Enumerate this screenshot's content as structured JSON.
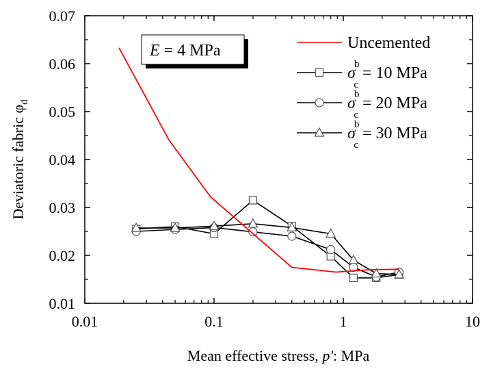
{
  "chart_data": {
    "type": "line",
    "title": "",
    "xlabel": "Mean effective stress, p': MPa",
    "xlabel_parts": {
      "prefix": "Mean effective stress, ",
      "var": "p'",
      "suffix": ": MPa"
    },
    "ylabel": "Deviatoric fabric φd",
    "ylabel_parts": {
      "main": "Deviatoric fabric φ",
      "sub": "d"
    },
    "xscale": "log",
    "xlim": [
      0.01,
      10
    ],
    "ylim": [
      0.01,
      0.07
    ],
    "xticks": [
      0.01,
      0.1,
      1,
      10
    ],
    "xtick_labels": [
      "0.01",
      "0.1",
      "1",
      "10"
    ],
    "yticks": [
      0.01,
      0.02,
      0.03,
      0.04,
      0.05,
      0.06,
      0.07
    ],
    "ytick_labels": [
      "0.01",
      "0.02",
      "0.03",
      "0.04",
      "0.05",
      "0.06",
      "0.07"
    ],
    "grid": false,
    "legend_position": "top-right",
    "annotation": {
      "var": "E",
      "text": " = 4 MPa"
    },
    "series": [
      {
        "name": "Uncemented",
        "color": "#ff0000",
        "marker": "none",
        "x": [
          0.0184,
          0.0447,
          0.094,
          0.4,
          0.88,
          1.6,
          2.7
        ],
        "y": [
          0.0633,
          0.0441,
          0.0322,
          0.0175,
          0.0165,
          0.017,
          0.0171
        ]
      },
      {
        "name": "σcb = 10 MPa",
        "legend_sym": "σ",
        "legend_sup": "b",
        "legend_sub": "c",
        "legend_rest": " = 10 MPa",
        "color": "#000000",
        "marker": "square",
        "x": [
          0.025,
          0.05,
          0.1,
          0.2,
          0.4,
          0.8,
          1.2,
          1.8,
          2.7
        ],
        "y": [
          0.0255,
          0.026,
          0.0245,
          0.0315,
          0.0261,
          0.0198,
          0.0153,
          0.0153,
          0.016
        ]
      },
      {
        "name": "σcb = 20 MPa",
        "legend_sym": "σ",
        "legend_sup": "b",
        "legend_sub": "c",
        "legend_rest": " = 20 MPa",
        "color": "#000000",
        "marker": "circle",
        "x": [
          0.025,
          0.05,
          0.1,
          0.2,
          0.4,
          0.8,
          1.2,
          1.8,
          2.7
        ],
        "y": [
          0.025,
          0.0254,
          0.0258,
          0.0249,
          0.024,
          0.0212,
          0.0175,
          0.0155,
          0.0165
        ]
      },
      {
        "name": "σcb = 30 MPa",
        "legend_sym": "σ",
        "legend_sup": "b",
        "legend_sub": "c",
        "legend_rest": " = 30 MPa",
        "color": "#000000",
        "marker": "triangle",
        "x": [
          0.025,
          0.05,
          0.1,
          0.2,
          0.4,
          0.8,
          1.2,
          1.8,
          2.7
        ],
        "y": [
          0.0257,
          0.0257,
          0.0261,
          0.0266,
          0.0258,
          0.0245,
          0.019,
          0.0162,
          0.016
        ]
      }
    ]
  }
}
